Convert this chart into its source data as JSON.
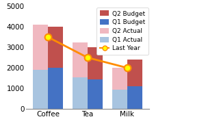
{
  "categories": [
    "Coffee",
    "Tea",
    "Milk"
  ],
  "q1_actual": [
    1900,
    1550,
    950
  ],
  "q2_actual": [
    2200,
    1700,
    1050
  ],
  "q1_budget": [
    2000,
    1450,
    1100
  ],
  "q2_budget": [
    2000,
    1550,
    1300
  ],
  "last_year": [
    3500,
    2500,
    2000
  ],
  "color_q1_actual": "#A8C4E0",
  "color_q2_actual": "#F0B8C0",
  "color_q1_budget": "#4472C4",
  "color_q2_budget": "#C0504D",
  "color_last_year": "#FF8C00",
  "color_last_year_marker": "#FFFF00",
  "ylim": [
    0,
    5000
  ],
  "yticks": [
    0,
    1000,
    2000,
    3000,
    4000,
    5000
  ],
  "bar_width": 0.38,
  "figsize": [
    3.2,
    1.87
  ],
  "dpi": 100,
  "legend_labels": [
    "Q2 Budget",
    "Q1 Budget",
    "Q2 Actual",
    "Q1 Actual",
    "Last Year"
  ]
}
